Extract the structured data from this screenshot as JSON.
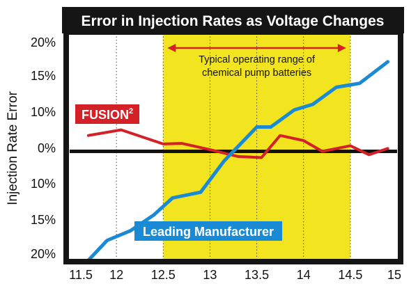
{
  "chart_data": {
    "type": "line",
    "title": "Error in Injection Rates as Voltage Changes",
    "xlabel": "",
    "ylabel": "Injection Rate Error",
    "x_ticks": [
      "11.5",
      "12",
      "12.5",
      "13",
      "13.5",
      "14",
      "14.5",
      "15"
    ],
    "y_ticks": [
      "20%",
      "15%",
      "10%",
      "0%",
      "10%",
      "15%",
      "20%"
    ],
    "xlim": [
      11.5,
      15
    ],
    "ylim": [
      -20,
      20
    ],
    "grid": "vertical dotted",
    "zero_line": true,
    "highlight_band": {
      "x_range": [
        12.5,
        14.5
      ],
      "color": "#f2e51f",
      "text_lines": [
        "Typical operating range of",
        "chemical pump batteries"
      ]
    },
    "series": [
      {
        "name": "FUSION",
        "name_superscript": "2",
        "color": "#d42027",
        "points": [
          [
            11.7,
            2
          ],
          [
            12.05,
            3
          ],
          [
            12.5,
            0.5
          ],
          [
            12.7,
            0.6
          ],
          [
            13.0,
            -0.5
          ],
          [
            13.3,
            -1.7
          ],
          [
            13.55,
            -1.9
          ],
          [
            13.75,
            2
          ],
          [
            14.0,
            1.1
          ],
          [
            14.2,
            -0.8
          ],
          [
            14.5,
            0.2
          ],
          [
            14.7,
            -1.4
          ],
          [
            14.9,
            -0.3
          ]
        ]
      },
      {
        "name": "Leading Manufacturer",
        "color": "#1a8ad4",
        "points": [
          [
            11.7,
            -20
          ],
          [
            11.9,
            -16.5
          ],
          [
            12.15,
            -14.8
          ],
          [
            12.4,
            -12
          ],
          [
            12.6,
            -9
          ],
          [
            12.9,
            -8
          ],
          [
            13.15,
            -2.5
          ],
          [
            13.5,
            3.5
          ],
          [
            13.65,
            3.5
          ],
          [
            13.9,
            6.5
          ],
          [
            14.1,
            7.5
          ],
          [
            14.35,
            10.5
          ],
          [
            14.6,
            11.2
          ],
          [
            14.9,
            15
          ]
        ]
      }
    ]
  }
}
